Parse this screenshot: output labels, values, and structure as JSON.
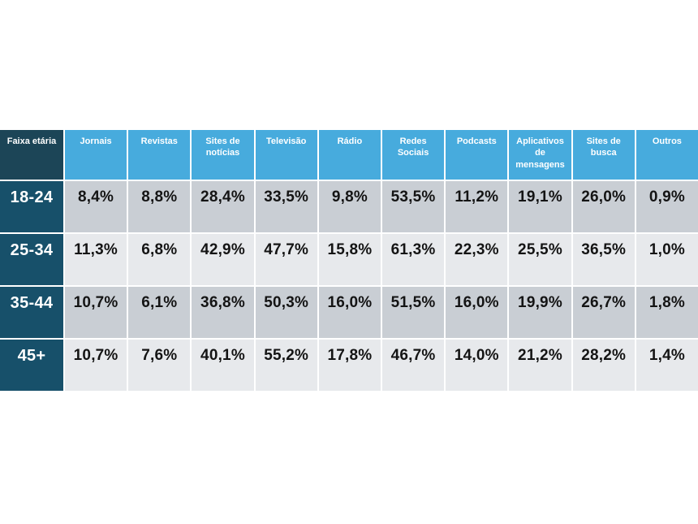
{
  "chart_data": {
    "type": "table",
    "title": "",
    "columns": [
      "Faixa etária",
      "Jornais",
      "Revistas",
      "Sites de notícias",
      "Televisão",
      "Rádio",
      "Redes Sociais",
      "Podcasts",
      "Aplicativos de mensagens",
      "Sites de busca",
      "Outros"
    ],
    "rows": [
      {
        "label": "18-24",
        "values": [
          "8,4%",
          "8,8%",
          "28,4%",
          "33,5%",
          "9,8%",
          "53,5%",
          "11,2%",
          "19,1%",
          "26,0%",
          "0,9%"
        ]
      },
      {
        "label": "25-34",
        "values": [
          "11,3%",
          "6,8%",
          "42,9%",
          "47,7%",
          "15,8%",
          "61,3%",
          "22,3%",
          "25,5%",
          "36,5%",
          "1,0%"
        ]
      },
      {
        "label": "35-44",
        "values": [
          "10,7%",
          "6,1%",
          "36,8%",
          "50,3%",
          "16,0%",
          "51,5%",
          "16,0%",
          "19,9%",
          "26,7%",
          "1,8%"
        ]
      },
      {
        "label": "45+",
        "values": [
          "10,7%",
          "7,6%",
          "40,1%",
          "55,2%",
          "17,8%",
          "46,7%",
          "14,0%",
          "21,2%",
          "28,2%",
          "1,4%"
        ]
      }
    ],
    "layout": {
      "grid": "2px white gaps between cells",
      "value_alignment": "top-center",
      "row_shading_order": [
        "dark",
        "light",
        "dark",
        "light"
      ]
    }
  },
  "colors": {
    "header_blue": "#47abdd",
    "header_dark": "#1c4557",
    "row_label_bg": "#17506a",
    "row_dark": "#c9ced4",
    "row_light": "#e7e9ec",
    "value_text": "#141414",
    "header_text": "#ffffff",
    "background": "#ffffff"
  }
}
